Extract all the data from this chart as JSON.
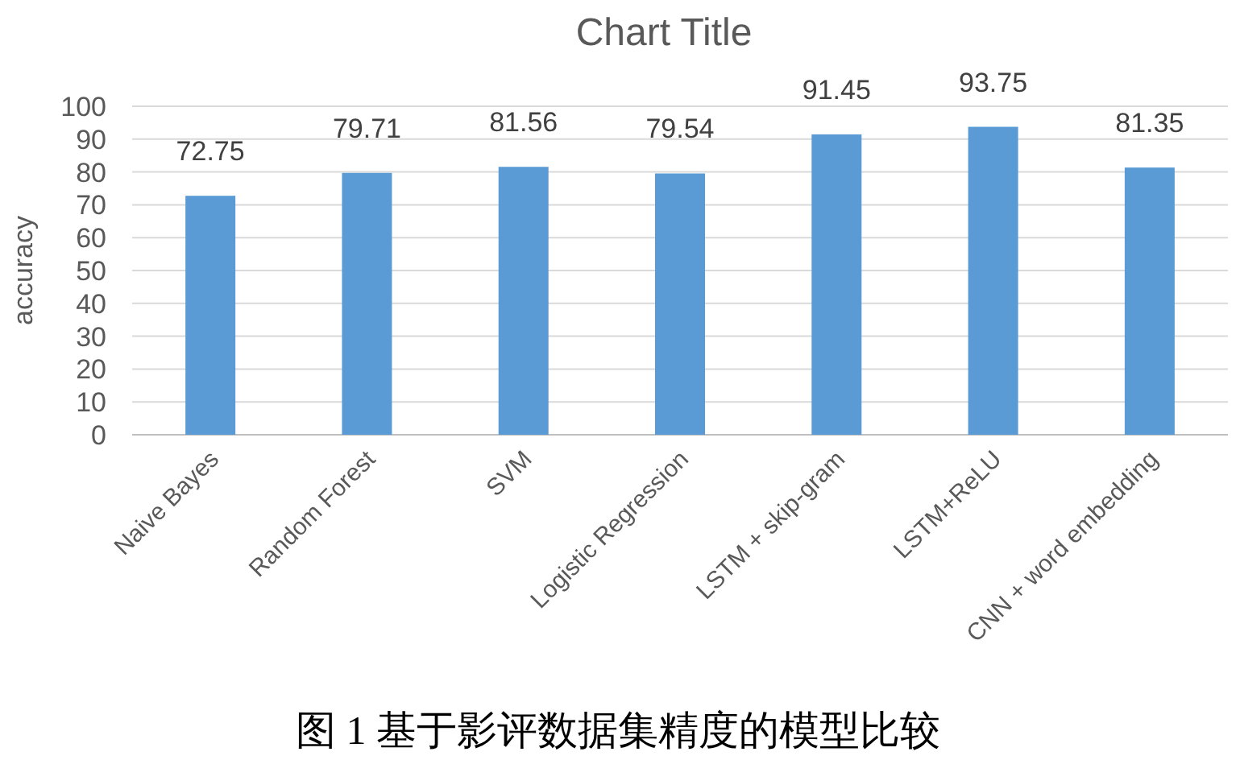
{
  "chart_data": {
    "type": "bar",
    "title": "Chart Title",
    "ylabel": "accuracy",
    "categories": [
      "Naive Bayes",
      "Random Forest",
      "SVM",
      "Logistic Regression",
      "LSTM + skip-gram",
      "LSTM+ReLU",
      "CNN + word embedding"
    ],
    "values": [
      72.75,
      79.71,
      81.56,
      79.54,
      91.45,
      93.75,
      81.35
    ],
    "color": "#5b9bd5",
    "ylim": [
      0,
      100
    ],
    "yticks": [
      0,
      10,
      20,
      30,
      40,
      50,
      60,
      70,
      80,
      90,
      100
    ],
    "grid": "y",
    "data_labels": true,
    "annotations": [
      "图 1 基于影评数据集精度的模型比较"
    ]
  }
}
